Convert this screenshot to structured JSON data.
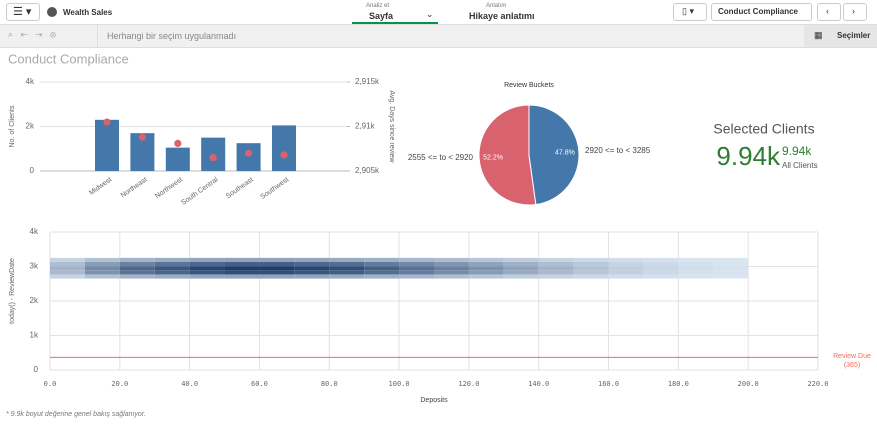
{
  "toolbar": {
    "app_name": "Wealth Sales",
    "analyze_label": "Analiz et",
    "analyze_value": "Sayfa",
    "narrate_label": "Anlatım",
    "narrate_value": "Hikaye anlatımı",
    "sheet_name": "Conduct Compliance"
  },
  "selection_bar": {
    "status": "Herhangi bir seçim uygulanmadı",
    "selections": "Seçimler"
  },
  "sheet_title": "Conduct Compliance",
  "kpi": {
    "title": "Selected Clients",
    "value": "9.94k",
    "secondary_value": "9.94k",
    "secondary_label": "All Clients"
  },
  "footnote": "* 9.9k boyut değerine genel bakış sağlanıyor.",
  "chart_data": [
    {
      "type": "combo",
      "categories": [
        "Midwest",
        "Northeast",
        "Northwest",
        "South Central",
        "Southeast",
        "Southwest"
      ],
      "ylabel": "No. of Clients",
      "y2label": "Avg. Days since review",
      "series": [
        {
          "name": "No. of Clients",
          "color": "#4477aa",
          "values": [
            2300,
            1700,
            1050,
            1500,
            1250,
            2050
          ]
        },
        {
          "name": "Avg. Days since review",
          "color": "#d9626f",
          "axis": "y2",
          "values": [
            2910.5,
            2908.8,
            2908.1,
            2906.5,
            2907.0,
            2906.8
          ]
        }
      ],
      "ylim": [
        0,
        4000
      ],
      "yticks": [
        0,
        {
          "value": 2000,
          "label": "2k"
        },
        {
          "value": 4000,
          "label": "4k"
        }
      ],
      "y2lim": [
        2905,
        2915
      ],
      "y2ticks": [
        {
          "value": 2905,
          "label": "2,905k"
        },
        {
          "value": 2910,
          "label": "2,91k"
        },
        {
          "value": 2915,
          "label": "2,915k"
        }
      ],
      "grid": true
    },
    {
      "type": "pie",
      "title": "Review Buckets",
      "categories": [
        "2555 <= to < 2920",
        "2920 <= to < 3285"
      ],
      "values": [
        52.2,
        47.8
      ],
      "value_labels": [
        "52.2%",
        "47.8%"
      ],
      "colors": [
        "#d9626f",
        "#4477aa"
      ]
    },
    {
      "type": "heatmap",
      "xlabel": "Deposits",
      "ylabel": "today() - ReviewDate",
      "xbins": [
        0,
        10,
        20,
        30,
        40,
        50,
        60,
        70,
        80,
        90,
        100,
        110,
        120,
        130,
        140,
        150,
        160,
        170,
        180,
        190,
        200
      ],
      "ybins": [
        2650,
        2770,
        2890,
        3010,
        3130,
        3250
      ],
      "values": [
        [
          12,
          22,
          30,
          34,
          38,
          40,
          40,
          38,
          36,
          32,
          28,
          24,
          20,
          16,
          12,
          9,
          6,
          4,
          2,
          1
        ],
        [
          27,
          50,
          68,
          77,
          86,
          90,
          90,
          86,
          81,
          72,
          63,
          54,
          45,
          36,
          27,
          20,
          14,
          9,
          5,
          3
        ],
        [
          30,
          55,
          75,
          85,
          95,
          100,
          100,
          95,
          90,
          80,
          70,
          60,
          50,
          40,
          30,
          22,
          15,
          10,
          6,
          3
        ],
        [
          24,
          44,
          60,
          68,
          76,
          80,
          80,
          76,
          72,
          64,
          56,
          48,
          40,
          32,
          24,
          18,
          12,
          8,
          5,
          2
        ],
        [
          12,
          22,
          30,
          34,
          38,
          40,
          40,
          38,
          36,
          32,
          28,
          24,
          20,
          16,
          12,
          9,
          6,
          4,
          2,
          1
        ]
      ],
      "colors": [
        "#dce7f3",
        "#1e3d6b"
      ],
      "xlim": [
        0,
        220
      ],
      "xticks": [
        {
          "value": 0,
          "label": "0.0"
        },
        {
          "value": 20,
          "label": "20.0"
        },
        {
          "value": 40,
          "label": "40.0"
        },
        {
          "value": 60,
          "label": "60.0"
        },
        {
          "value": 80,
          "label": "80.0"
        },
        {
          "value": 100,
          "label": "100.0"
        },
        {
          "value": 120,
          "label": "120.0"
        },
        {
          "value": 140,
          "label": "140.0"
        },
        {
          "value": 160,
          "label": "160.0"
        },
        {
          "value": 180,
          "label": "180.0"
        },
        {
          "value": 200,
          "label": "200.0"
        },
        {
          "value": 220,
          "label": "220.0"
        }
      ],
      "ylim": [
        0,
        4000
      ],
      "yticks": [
        0,
        {
          "value": 1000,
          "label": "1k"
        },
        {
          "value": 2000,
          "label": "2k"
        },
        {
          "value": 3000,
          "label": "3k"
        },
        {
          "value": 4000,
          "label": "4k"
        }
      ],
      "reference_line": {
        "value": 365,
        "label": "Review Due",
        "value_label": "(365)",
        "color": "#f26c5a"
      },
      "grid": true
    }
  ]
}
